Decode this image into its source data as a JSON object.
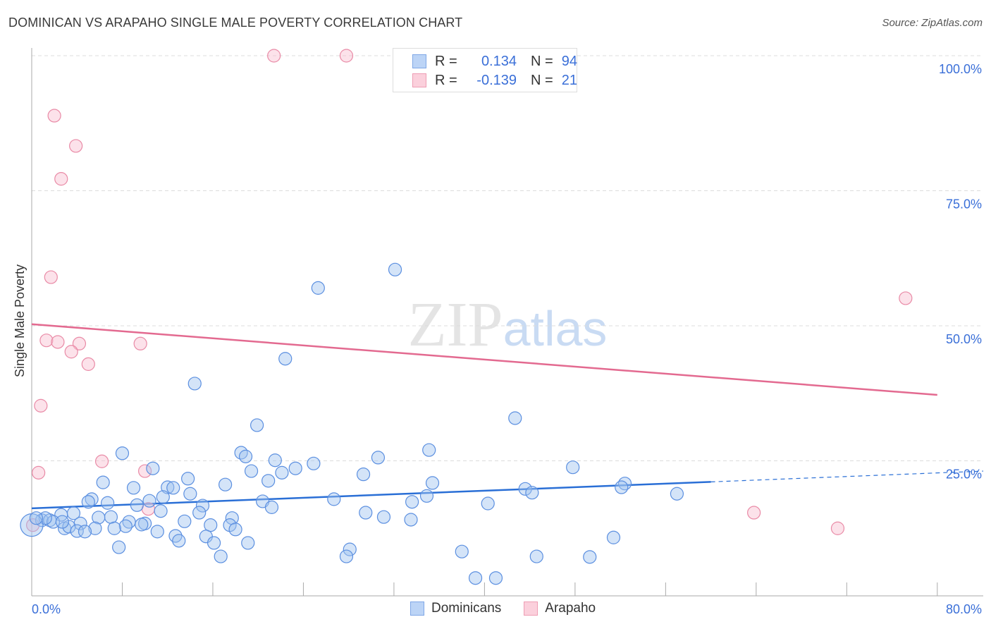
{
  "title": "DOMINICAN VS ARAPAHO SINGLE MALE POVERTY CORRELATION CHART",
  "source": "Source: ZipAtlas.com",
  "watermark": "ZIPatlas",
  "legend": {
    "rows": [
      {
        "r_label": "R =",
        "r_value": "0.134",
        "n_label": "N =",
        "n_value": "94"
      },
      {
        "r_label": "R =",
        "r_value": "-0.139",
        "n_label": "N =",
        "n_value": "21"
      }
    ]
  },
  "chart_data": {
    "type": "scatter",
    "title": "DOMINICAN VS ARAPAHO SINGLE MALE POVERTY CORRELATION CHART",
    "xlabel": "",
    "ylabel": "Single Male Poverty",
    "xlim": [
      0,
      84.06
    ],
    "ylim": [
      0,
      100
    ],
    "x_tick_labels": [
      "0.0%",
      "80.0%"
    ],
    "y_ticks": [
      {
        "value": 100,
        "label": "100.0%"
      },
      {
        "value": 75,
        "label": "75.0%"
      },
      {
        "value": 50,
        "label": "50.0%"
      },
      {
        "value": 25,
        "label": "25.0%"
      }
    ],
    "x_minor_ticks": [
      8,
      16,
      24,
      32,
      40,
      48,
      56,
      64,
      72,
      80
    ],
    "grid": true,
    "legend_position": "bottom-center",
    "colors": {
      "Dominicans": "#5b8fe0",
      "Arapaho": "#e98aa6",
      "blue_line": "#2a6fd6",
      "pink_line": "#e36a90"
    },
    "series": [
      {
        "name": "Dominicans",
        "points": [
          [
            32.1,
            60.4
          ],
          [
            25.3,
            57.0
          ],
          [
            22.4,
            43.9
          ],
          [
            14.4,
            39.3
          ],
          [
            42.7,
            32.9
          ],
          [
            19.9,
            31.6
          ],
          [
            35.1,
            27.0
          ],
          [
            8.0,
            26.4
          ],
          [
            18.5,
            26.5
          ],
          [
            18.9,
            25.8
          ],
          [
            30.6,
            25.6
          ],
          [
            21.5,
            25.1
          ],
          [
            24.9,
            24.5
          ],
          [
            10.7,
            23.6
          ],
          [
            47.8,
            23.8
          ],
          [
            19.4,
            23.1
          ],
          [
            22.1,
            22.8
          ],
          [
            23.3,
            23.6
          ],
          [
            29.3,
            22.5
          ],
          [
            6.3,
            21.0
          ],
          [
            13.8,
            21.7
          ],
          [
            20.9,
            21.3
          ],
          [
            17.1,
            20.6
          ],
          [
            35.4,
            20.9
          ],
          [
            52.4,
            20.8
          ],
          [
            52.1,
            20.1
          ],
          [
            9.0,
            20.0
          ],
          [
            12.0,
            20.1
          ],
          [
            12.5,
            20.0
          ],
          [
            57.0,
            18.9
          ],
          [
            43.6,
            19.8
          ],
          [
            14.0,
            18.9
          ],
          [
            44.2,
            19.1
          ],
          [
            34.9,
            18.5
          ],
          [
            11.6,
            18.3
          ],
          [
            5.3,
            17.9
          ],
          [
            5.0,
            17.4
          ],
          [
            6.7,
            17.2
          ],
          [
            10.4,
            17.6
          ],
          [
            26.7,
            17.9
          ],
          [
            20.4,
            17.5
          ],
          [
            33.6,
            17.4
          ],
          [
            40.3,
            17.1
          ],
          [
            15.1,
            16.7
          ],
          [
            9.3,
            16.8
          ],
          [
            21.2,
            16.4
          ],
          [
            14.8,
            15.4
          ],
          [
            11.4,
            15.7
          ],
          [
            3.7,
            15.3
          ],
          [
            2.6,
            15.0
          ],
          [
            29.5,
            15.4
          ],
          [
            7.0,
            14.6
          ],
          [
            5.9,
            14.5
          ],
          [
            17.7,
            14.4
          ],
          [
            31.1,
            14.6
          ],
          [
            0.9,
            14.0
          ],
          [
            1.6,
            14.0
          ],
          [
            1.9,
            13.7
          ],
          [
            1.2,
            14.4
          ],
          [
            33.5,
            14.1
          ],
          [
            4.3,
            13.4
          ],
          [
            8.6,
            13.7
          ],
          [
            13.5,
            13.8
          ],
          [
            10.0,
            13.4
          ],
          [
            17.5,
            13.1
          ],
          [
            15.8,
            13.1
          ],
          [
            9.7,
            13.2
          ],
          [
            8.3,
            12.9
          ],
          [
            2.9,
            12.5
          ],
          [
            3.3,
            12.8
          ],
          [
            5.6,
            12.5
          ],
          [
            7.3,
            12.5
          ],
          [
            18.0,
            12.3
          ],
          [
            4.0,
            12.0
          ],
          [
            4.7,
            11.9
          ],
          [
            11.1,
            11.9
          ],
          [
            12.7,
            11.1
          ],
          [
            15.4,
            11.0
          ],
          [
            13.0,
            10.2
          ],
          [
            16.1,
            9.8
          ],
          [
            19.1,
            9.8
          ],
          [
            51.4,
            10.8
          ],
          [
            7.7,
            9.0
          ],
          [
            28.1,
            8.6
          ],
          [
            38.0,
            8.2
          ],
          [
            27.8,
            7.3
          ],
          [
            16.7,
            7.3
          ],
          [
            44.6,
            7.3
          ],
          [
            49.3,
            7.2
          ],
          [
            39.2,
            3.3
          ],
          [
            41.0,
            3.3
          ],
          [
            0.0,
            13.1
          ],
          [
            0.4,
            14.4
          ],
          [
            2.7,
            13.7
          ]
        ],
        "trend": {
          "x": [
            0,
            60,
            84.06
          ],
          "y": [
            16.2,
            21.1,
            23.1
          ],
          "solid_until": 60
        }
      },
      {
        "name": "Arapaho",
        "points": [
          [
            21.4,
            100
          ],
          [
            27.8,
            100
          ],
          [
            2.0,
            88.9
          ],
          [
            3.9,
            83.3
          ],
          [
            2.6,
            77.2
          ],
          [
            1.7,
            59.0
          ],
          [
            77.2,
            55.1
          ],
          [
            1.3,
            47.3
          ],
          [
            2.3,
            47.0
          ],
          [
            4.2,
            46.7
          ],
          [
            9.6,
            46.7
          ],
          [
            3.5,
            45.2
          ],
          [
            5.0,
            42.9
          ],
          [
            0.8,
            35.2
          ],
          [
            0.6,
            22.8
          ],
          [
            6.2,
            24.9
          ],
          [
            10.0,
            23.1
          ],
          [
            10.3,
            16.1
          ],
          [
            63.8,
            15.4
          ],
          [
            71.2,
            12.5
          ],
          [
            0.1,
            13.1
          ]
        ],
        "trend": {
          "x": [
            0,
            80
          ],
          "y": [
            50.3,
            37.2
          ]
        }
      }
    ]
  }
}
